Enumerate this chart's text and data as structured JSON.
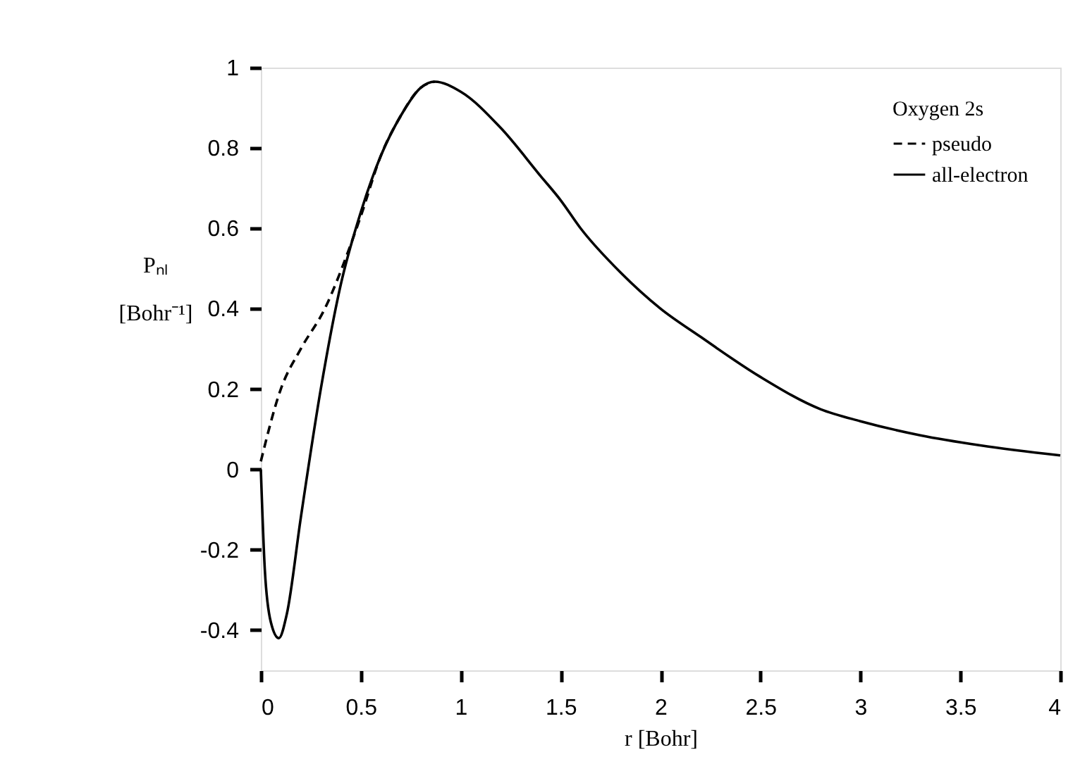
{
  "chart_data": {
    "type": "line",
    "xlabel": "r    [Bohr]",
    "ylabel": "Pₙₗ [Bohr⁻¹]",
    "legend_title": "Oxygen 2s",
    "xlim": [
      0,
      4
    ],
    "xticks": [
      0,
      0.5,
      1,
      1.5,
      2,
      2.5,
      3,
      3.5,
      4
    ],
    "ylim": [
      -0.5,
      1
    ],
    "yticks": [
      {
        "value": -0.4,
        "label": "-0.4"
      },
      {
        "value": -0.2,
        "label": "-0.2"
      },
      0,
      0.2,
      0.4,
      0.6,
      0.8,
      1
    ],
    "grid": false,
    "legend": "top right",
    "marker": "none",
    "series": [
      {
        "name": "pseudo",
        "color": "#000000",
        "line_style": "dashed",
        "x": [
          0,
          0.1,
          0.2,
          0.32,
          0.45,
          0.5,
          0.6,
          0.7,
          0.8,
          0.87
        ],
        "values": [
          0.02,
          0.2,
          0.3,
          0.4,
          0.56,
          0.63,
          0.78,
          0.88,
          0.95,
          0.965
        ]
      },
      {
        "name": "all-electron",
        "color": "#000000",
        "line_style": "solid",
        "x": [
          0,
          0.02,
          0.05,
          0.09,
          0.13,
          0.2,
          0.3,
          0.4,
          0.5,
          0.6,
          0.7,
          0.8,
          0.87,
          1.0,
          1.2,
          1.4,
          1.5,
          1.6,
          1.8,
          2.0,
          2.2,
          2.5,
          2.8,
          3.0,
          3.3,
          3.6,
          4.0
        ],
        "values": [
          0.0,
          -0.25,
          -0.38,
          -0.42,
          -0.36,
          -0.12,
          0.2,
          0.46,
          0.64,
          0.78,
          0.88,
          0.95,
          0.965,
          0.94,
          0.85,
          0.73,
          0.67,
          0.6,
          0.49,
          0.4,
          0.33,
          0.23,
          0.15,
          0.12,
          0.085,
          0.06,
          0.035
        ]
      }
    ]
  }
}
